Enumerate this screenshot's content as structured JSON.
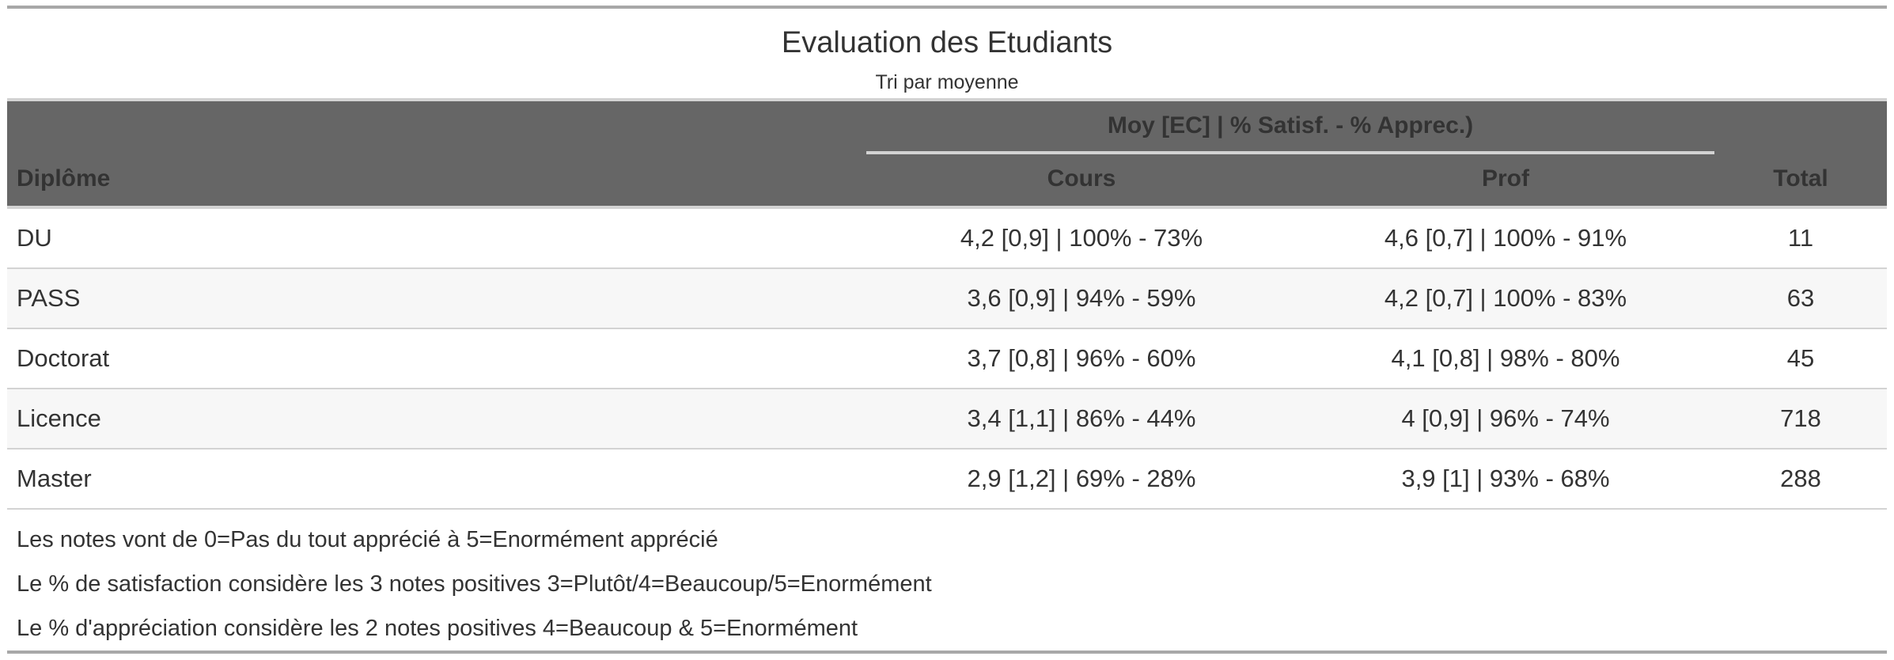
{
  "table": {
    "title": "Evaluation des Etudiants",
    "subtitle": "Tri par moyenne",
    "spanner_label": "Moy [EC] | % Satisf. - % Apprec.)",
    "columns": {
      "diplome": "Diplôme",
      "cours": "Cours",
      "prof": "Prof",
      "total": "Total"
    },
    "rows": [
      {
        "diplome": "DU",
        "cours": "4,2 [0,9] | 100% - 73%",
        "prof": "4,6 [0,7] | 100% - 91%",
        "total": "11"
      },
      {
        "diplome": "PASS",
        "cours": "3,6 [0,9] | 94% - 59%",
        "prof": "4,2 [0,7] | 100% - 83%",
        "total": "63"
      },
      {
        "diplome": "Doctorat",
        "cours": "3,7 [0,8] | 96% - 60%",
        "prof": "4,1 [0,8] | 98% - 80%",
        "total": "45"
      },
      {
        "diplome": "Licence",
        "cours": "3,4 [1,1] | 86% - 44%",
        "prof": "4 [0,9] | 96% - 74%",
        "total": "718"
      },
      {
        "diplome": "Master",
        "cours": "2,9 [1,2] | 69% - 28%",
        "prof": "3,9 [1] | 93% - 68%",
        "total": "288"
      }
    ],
    "footnotes": [
      "Les notes vont de 0=Pas du tout apprécié à 5=Enormément apprécié",
      "Le % de satisfaction considère les 3 notes positives 3=Plutôt/4=Beaucoup/5=Enormément",
      "Le % d'appréciation considère les 2 notes positives 4=Beaucoup & 5=Enormément"
    ],
    "colors": {
      "header_background": "#666666",
      "rule": "#a8a8a8",
      "zebra": "#f7f7f7"
    }
  }
}
